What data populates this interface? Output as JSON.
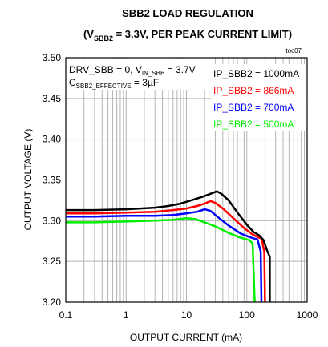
{
  "chart_data": {
    "type": "line",
    "title": "SBB2 LOAD REGULATION",
    "subtitle": {
      "prefix": "(V",
      "sub": "SBB2",
      "suffix": " = 3.3V, PER PEAK CURRENT LIMIT)"
    },
    "figure_id": "toc07",
    "xlabel": "OUTPUT CURRENT (mA)",
    "ylabel": "OUTPUT VOLTAGE (V)",
    "x_scale": "log",
    "xlim": [
      0.1,
      1000
    ],
    "ylim": [
      3.2,
      3.5
    ],
    "x_ticks": [
      "0.1",
      "1",
      "10",
      "100",
      "1000"
    ],
    "y_ticks": [
      "3.20",
      "3.25",
      "3.30",
      "3.35",
      "3.40",
      "3.45",
      "3.50"
    ],
    "grid": true,
    "annotations": {
      "line1_a": "DRV_SBB = 0, V",
      "line1_sub": "IN_SBB",
      "line1_b": " = 3.7V",
      "line2_a": "C",
      "line2_sub": "SBB2_EFFECTIVE",
      "line2_b": " = 3µF"
    },
    "legend_position": "top-right",
    "series": [
      {
        "name": "IP_SBB2 = 1000mA",
        "color": "#000000",
        "points": [
          [
            0.1,
            3.313
          ],
          [
            0.3,
            3.313
          ],
          [
            1,
            3.314
          ],
          [
            3,
            3.316
          ],
          [
            5,
            3.318
          ],
          [
            8,
            3.321
          ],
          [
            12,
            3.325
          ],
          [
            18,
            3.329
          ],
          [
            25,
            3.333
          ],
          [
            32,
            3.336
          ],
          [
            38,
            3.333
          ],
          [
            50,
            3.325
          ],
          [
            70,
            3.31
          ],
          [
            100,
            3.295
          ],
          [
            130,
            3.286
          ],
          [
            160,
            3.282
          ],
          [
            190,
            3.276
          ],
          [
            220,
            3.262
          ],
          [
            240,
            3.256
          ],
          [
            240,
            3.2
          ]
        ]
      },
      {
        "name": "IP_SBB2 = 866mA",
        "color": "#ff0000",
        "points": [
          [
            0.1,
            3.309
          ],
          [
            0.3,
            3.309
          ],
          [
            1,
            3.31
          ],
          [
            3,
            3.311
          ],
          [
            6,
            3.313
          ],
          [
            10,
            3.315
          ],
          [
            15,
            3.318
          ],
          [
            20,
            3.321
          ],
          [
            25,
            3.324
          ],
          [
            30,
            3.322
          ],
          [
            40,
            3.315
          ],
          [
            60,
            3.303
          ],
          [
            90,
            3.291
          ],
          [
            120,
            3.284
          ],
          [
            150,
            3.28
          ],
          [
            175,
            3.278
          ],
          [
            195,
            3.262
          ],
          [
            200,
            3.2
          ]
        ]
      },
      {
        "name": "IP_SBB2 = 700mA",
        "color": "#0000ff",
        "points": [
          [
            0.1,
            3.305
          ],
          [
            0.3,
            3.305
          ],
          [
            1,
            3.306
          ],
          [
            3,
            3.306
          ],
          [
            6,
            3.307
          ],
          [
            10,
            3.309
          ],
          [
            15,
            3.311
          ],
          [
            20,
            3.314
          ],
          [
            25,
            3.312
          ],
          [
            35,
            3.303
          ],
          [
            50,
            3.294
          ],
          [
            80,
            3.284
          ],
          [
            120,
            3.279
          ],
          [
            150,
            3.277
          ],
          [
            170,
            3.262
          ],
          [
            175,
            3.2
          ]
        ]
      },
      {
        "name": "IP_SBB2 = 500mA",
        "color": "#00ee00",
        "points": [
          [
            0.1,
            3.298
          ],
          [
            0.3,
            3.298
          ],
          [
            1,
            3.299
          ],
          [
            3,
            3.3
          ],
          [
            6,
            3.301
          ],
          [
            10,
            3.303
          ],
          [
            14,
            3.302
          ],
          [
            20,
            3.298
          ],
          [
            30,
            3.293
          ],
          [
            50,
            3.285
          ],
          [
            80,
            3.279
          ],
          [
            110,
            3.276
          ],
          [
            125,
            3.272
          ],
          [
            135,
            3.2
          ]
        ]
      }
    ]
  }
}
